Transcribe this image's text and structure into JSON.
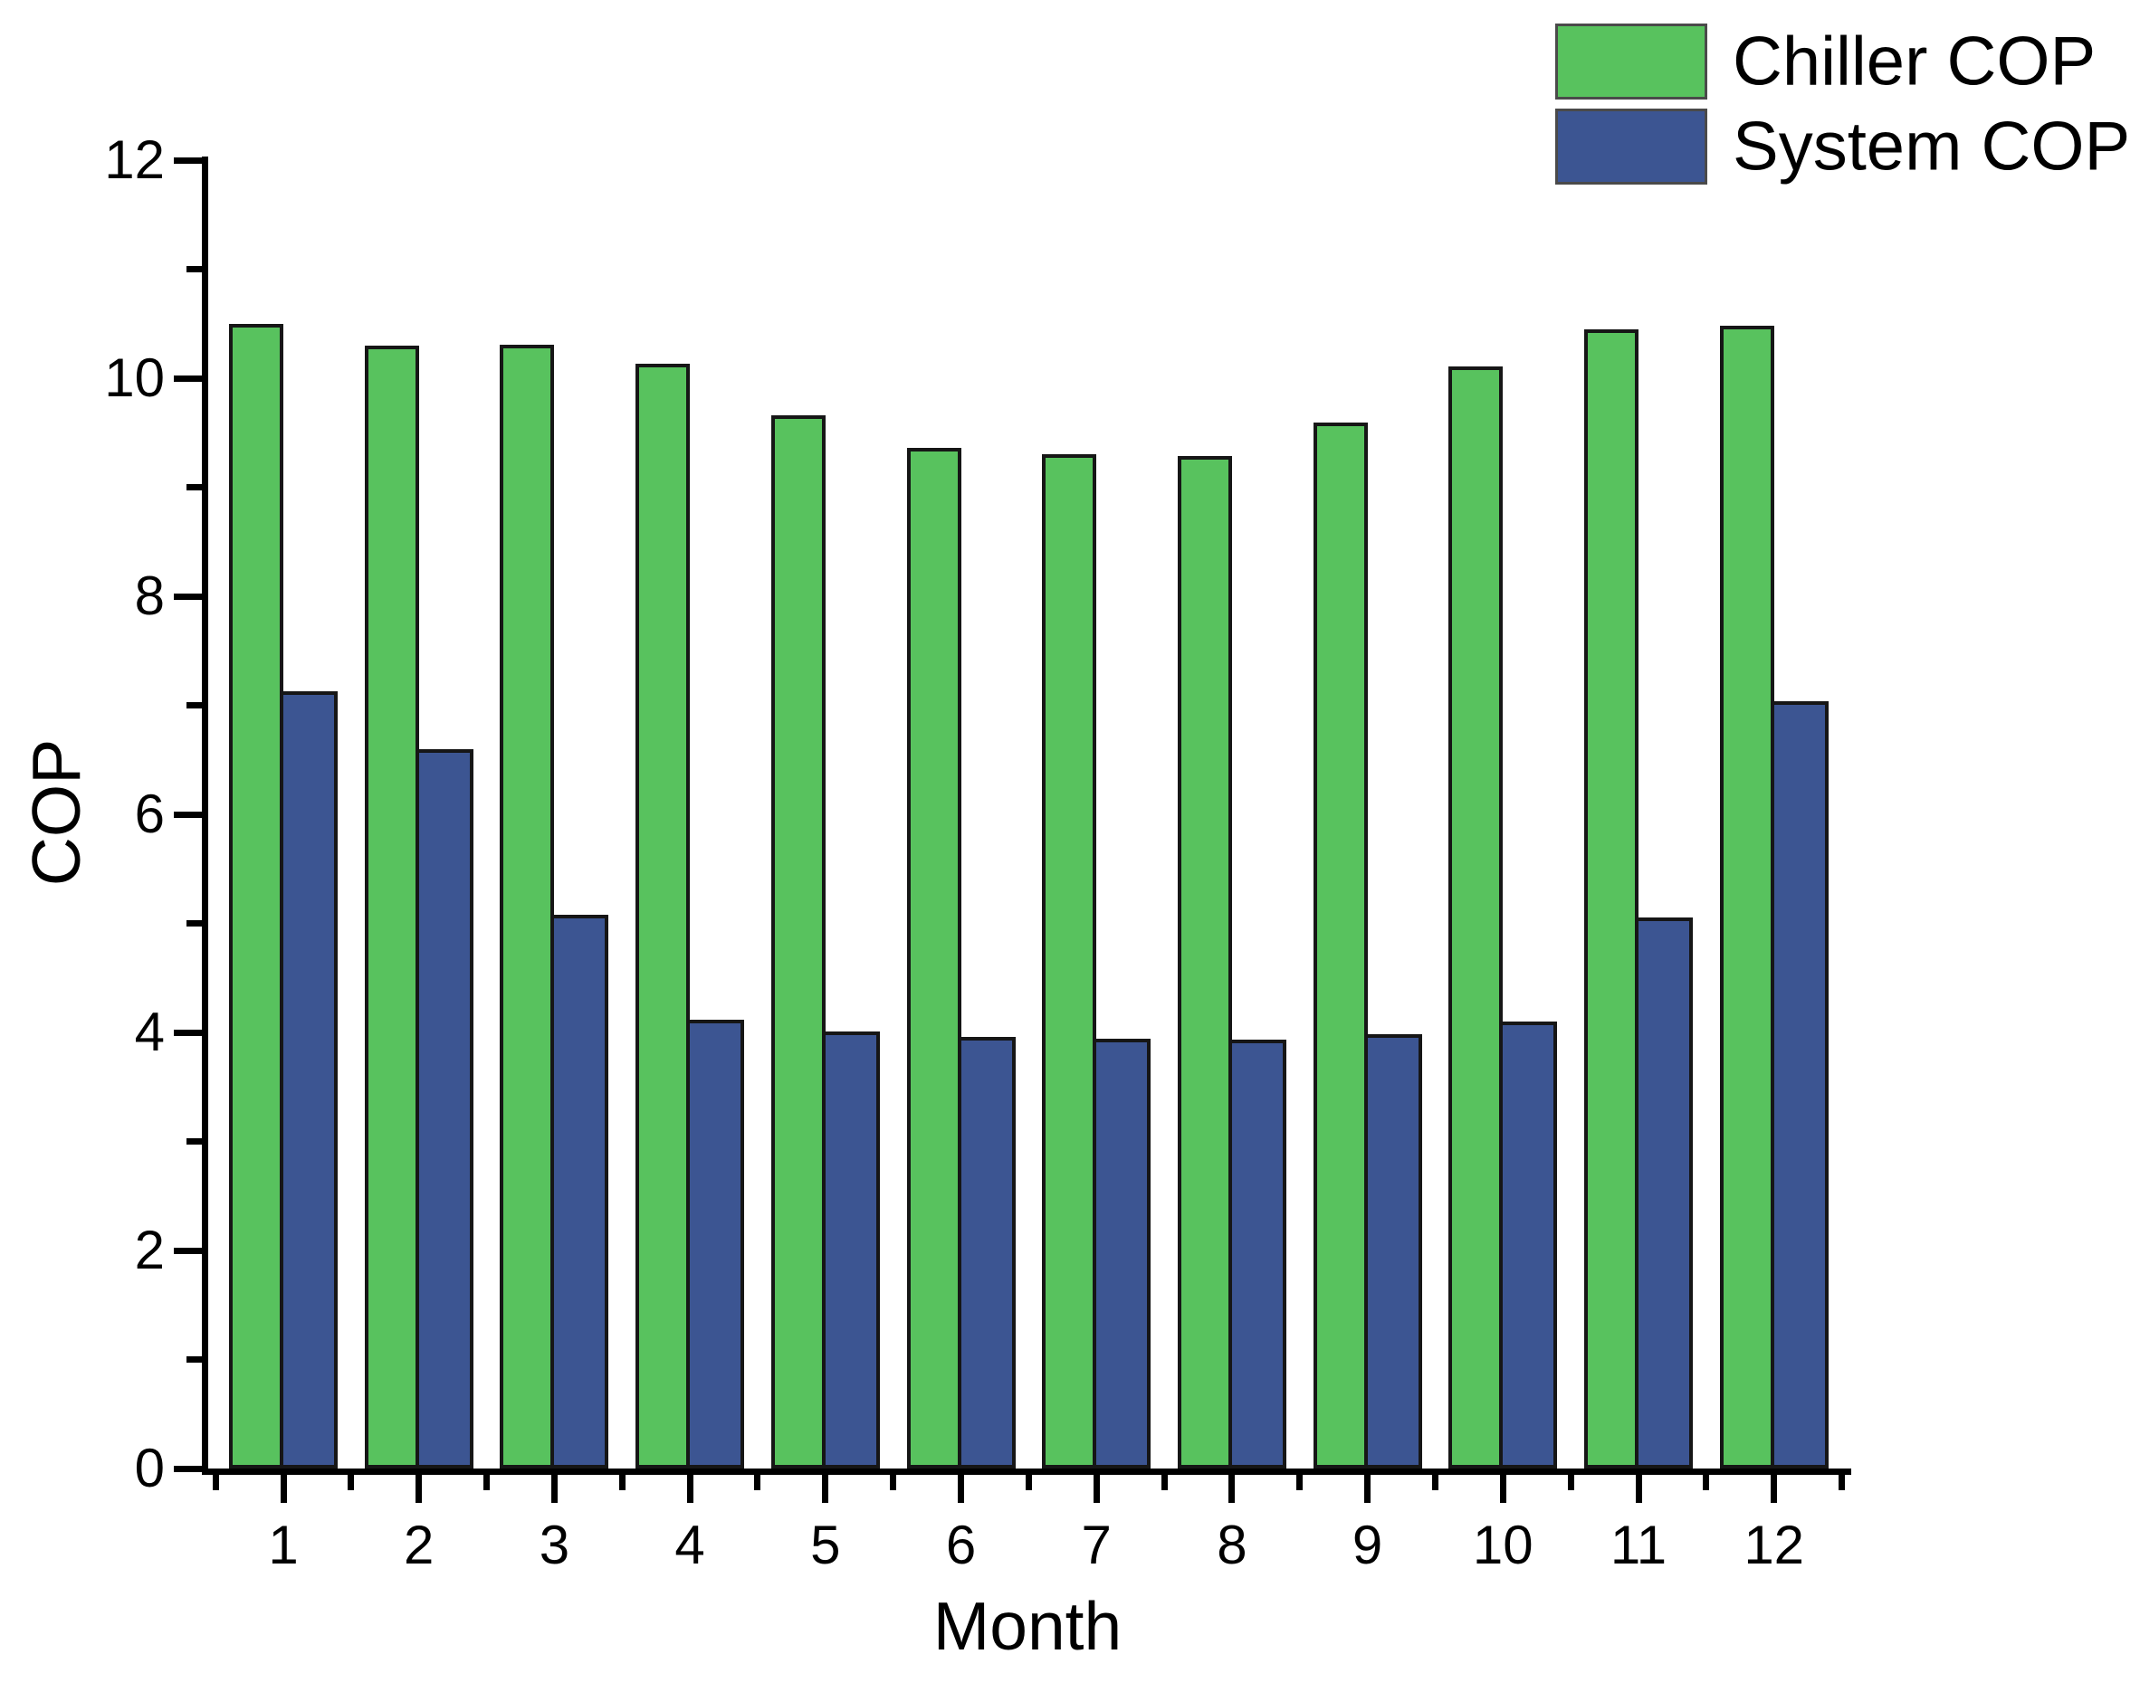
{
  "chart_data": {
    "type": "bar",
    "title": "",
    "xlabel": "Month",
    "ylabel": "COP",
    "categories": [
      "1",
      "2",
      "3",
      "4",
      "5",
      "6",
      "7",
      "8",
      "9",
      "10",
      "11",
      "12"
    ],
    "series": [
      {
        "name": "Chiller COP",
        "color": "#58c25e",
        "values": [
          10.5,
          10.3,
          10.31,
          10.13,
          9.66,
          9.36,
          9.3,
          9.29,
          9.59,
          10.11,
          10.45,
          10.48
        ]
      },
      {
        "name": "System COP",
        "color": "#3c5592",
        "values": [
          7.13,
          6.6,
          5.08,
          4.12,
          4.01,
          3.96,
          3.94,
          3.93,
          3.98,
          4.1,
          5.05,
          7.04
        ]
      }
    ],
    "ylim": [
      0,
      12
    ],
    "y_major_step": 2,
    "y_minor_step": 1,
    "y_tick_labels": [
      "0",
      "2",
      "4",
      "6",
      "8",
      "10",
      "12"
    ],
    "bar_border_color": "#161616",
    "axis_color": "#000000",
    "legend_position": "top-right",
    "grid": false
  }
}
